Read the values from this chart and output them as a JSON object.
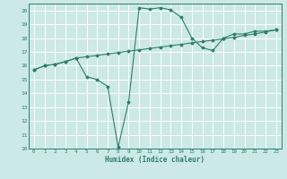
{
  "xlabel": "Humidex (Indice chaleur)",
  "xlim": [
    -0.5,
    23.5
  ],
  "ylim": [
    10,
    20.5
  ],
  "yticks": [
    10,
    11,
    12,
    13,
    14,
    15,
    16,
    17,
    18,
    19,
    20
  ],
  "xticks": [
    0,
    1,
    2,
    3,
    4,
    5,
    6,
    7,
    8,
    9,
    10,
    11,
    12,
    13,
    14,
    15,
    16,
    17,
    18,
    19,
    20,
    21,
    22,
    23
  ],
  "background_color": "#cce8e8",
  "grid_color": "#ffffff",
  "line_color": "#2e7d6e",
  "curve1_x": [
    0,
    1,
    2,
    3,
    4,
    5,
    6,
    7,
    8,
    9,
    10,
    11,
    12,
    13,
    14,
    15,
    16,
    17,
    18,
    19,
    20,
    21,
    22,
    23
  ],
  "curve1_y": [
    15.7,
    16.0,
    16.1,
    16.3,
    16.55,
    16.65,
    16.75,
    16.85,
    16.95,
    17.05,
    17.15,
    17.25,
    17.35,
    17.45,
    17.55,
    17.65,
    17.75,
    17.85,
    17.95,
    18.05,
    18.2,
    18.3,
    18.45,
    18.6
  ],
  "curve2_x": [
    0,
    1,
    2,
    3,
    4,
    5,
    6,
    7,
    8,
    9,
    10,
    11,
    12,
    13,
    14,
    15,
    16,
    17,
    18,
    19,
    20,
    21,
    22,
    23
  ],
  "curve2_y": [
    15.7,
    16.0,
    16.1,
    16.3,
    16.55,
    15.2,
    15.0,
    14.5,
    10.1,
    13.4,
    20.2,
    20.1,
    20.2,
    20.05,
    19.5,
    18.0,
    17.3,
    17.1,
    18.0,
    18.3,
    18.3,
    18.5,
    18.5,
    18.6
  ]
}
